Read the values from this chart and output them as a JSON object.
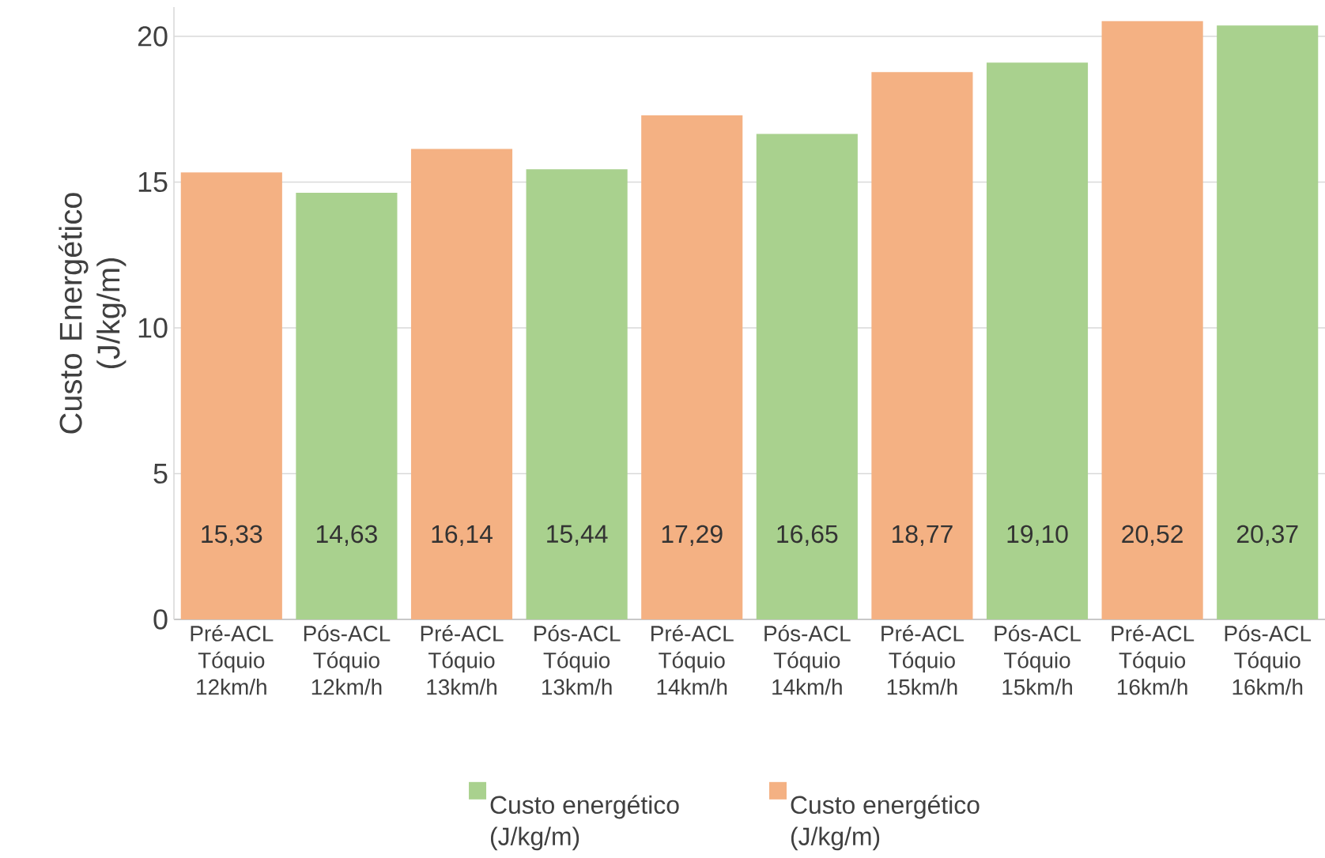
{
  "chart_data": {
    "type": "bar",
    "ylabel": "Custo Energético (J/kg/m)",
    "categories": [
      "Pré-ACL Tóquio 12km/h",
      "Pós-ACL Tóquio 12km/h",
      "Pré-ACL Tóquio 13km/h",
      "Pós-ACL Tóquio 13km/h",
      "Pré-ACL Tóquio 14km/h",
      "Pós-ACL Tóquio 14km/h",
      "Pré-ACL Tóquio 15km/h",
      "Pós-ACL Tóquio 15km/h",
      "Pré-ACL Tóquio 16km/h",
      "Pós-ACL Tóquio 16km/h"
    ],
    "series": [
      {
        "name": "Custo energético (J/kg/m)",
        "color": "#a9d18e",
        "values": [
          null,
          14.63,
          null,
          15.44,
          null,
          16.65,
          null,
          19.1,
          null,
          20.37
        ],
        "value_labels": [
          null,
          "14,63",
          null,
          "15,44",
          null,
          "16,65",
          null,
          "19,10",
          null,
          "20,37"
        ]
      },
      {
        "name": "Custo energético (J/kg/m)",
        "color": "#f4b183",
        "values": [
          15.33,
          null,
          16.14,
          null,
          17.29,
          null,
          18.77,
          null,
          20.52,
          null
        ],
        "value_labels": [
          "15,33",
          null,
          "16,14",
          null,
          "17,29",
          null,
          "18,77",
          null,
          "20,52",
          null
        ]
      }
    ],
    "ylim": [
      0,
      21
    ],
    "yticks": [
      0,
      5,
      10,
      15,
      20
    ],
    "grid": "y",
    "legend": "bottom"
  }
}
